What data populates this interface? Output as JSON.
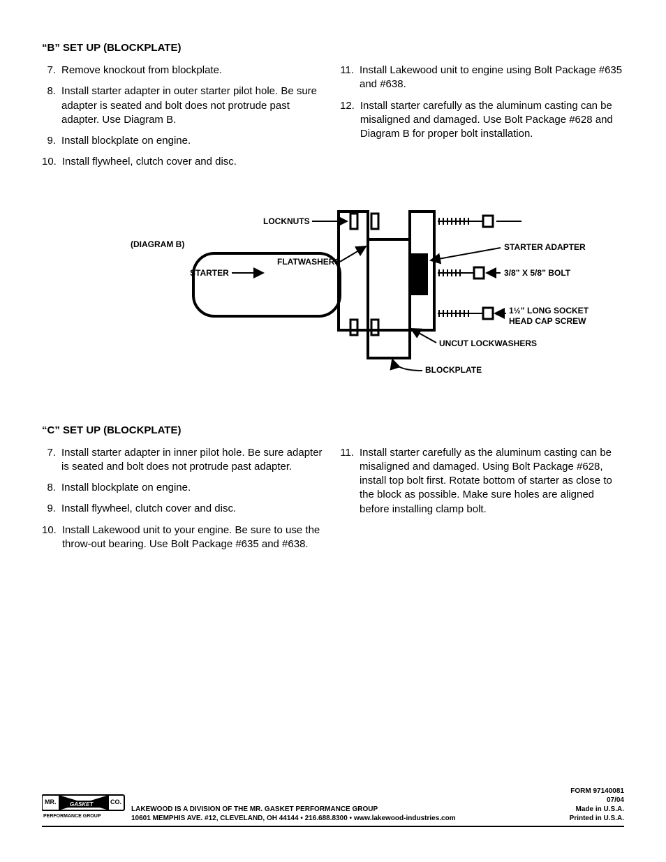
{
  "section_b": {
    "heading": "“B” SET UP (BLOCKPLATE)",
    "left": [
      {
        "num": "7.",
        "text": "Remove knockout from blockplate."
      },
      {
        "num": "8.",
        "text": "Install starter adapter in outer starter pilot hole. Be sure adapter is seated and bolt does not protrude past adapter. Use Diagram B."
      },
      {
        "num": "9.",
        "text": "Install blockplate on engine."
      },
      {
        "num": "10.",
        "text": "Install flywheel, clutch cover and disc."
      }
    ],
    "right": [
      {
        "num": "11.",
        "text": "Install Lakewood unit to engine using Bolt Package #635 and #638."
      },
      {
        "num": "12.",
        "text": "Install starter carefully as the aluminum casting can be misaligned and damaged. Use Bolt Package #628 and Diagram B for proper bolt installation."
      }
    ]
  },
  "diagram": {
    "title": "(DIAGRAM B)",
    "labels": {
      "locknuts": "LOCKNUTS",
      "flatwashers": "FLATWASHERS",
      "starter": "STARTER",
      "starter_adapter": "STARTER ADAPTER",
      "bolt": "3/8” X 5/8” BOLT",
      "socket1": "1½” LONG SOCKET",
      "socket2": "HEAD CAP SCREW",
      "uncut": "UNCUT LOCKWASHERS",
      "blockplate": "BLOCKPLATE"
    }
  },
  "section_c": {
    "heading": "“C” SET UP (BLOCKPLATE)",
    "left": [
      {
        "num": "7.",
        "text": "Install starter adapter in inner pilot hole. Be sure adapter is seated and bolt does not protrude past adapter."
      },
      {
        "num": "8.",
        "text": "Install blockplate on engine."
      },
      {
        "num": "9.",
        "text": "Install flywheel, clutch cover and disc."
      },
      {
        "num": "10.",
        "text": "Install Lakewood unit to your engine. Be sure to use the throw-out bearing. Use Bolt Package #635 and #638."
      }
    ],
    "right": [
      {
        "num": "11.",
        "text": "Install starter carefully as the aluminum casting can be misaligned and damaged. Using Bolt Package #628, install top bolt first. Rotate bottom of starter as close to the block as possible. Make sure holes are aligned before installing clamp bolt."
      }
    ]
  },
  "footer": {
    "logo_top": "MR.",
    "logo_mid": "GASKET",
    "logo_r": "CO.",
    "logo_bottom": "PERFORMANCE GROUP",
    "line1": "LAKEWOOD IS A DIVISION OF THE MR. GASKET PERFORMANCE GROUP",
    "line2": "10601 MEMPHIS AVE. #12, CLEVELAND, OH 44144  •  216.688.8300  •  www.lakewood-industries.com",
    "form": "FORM 97140081",
    "date": "07/04",
    "made": "Made in U.S.A.",
    "printed": "Printed in U.S.A."
  }
}
